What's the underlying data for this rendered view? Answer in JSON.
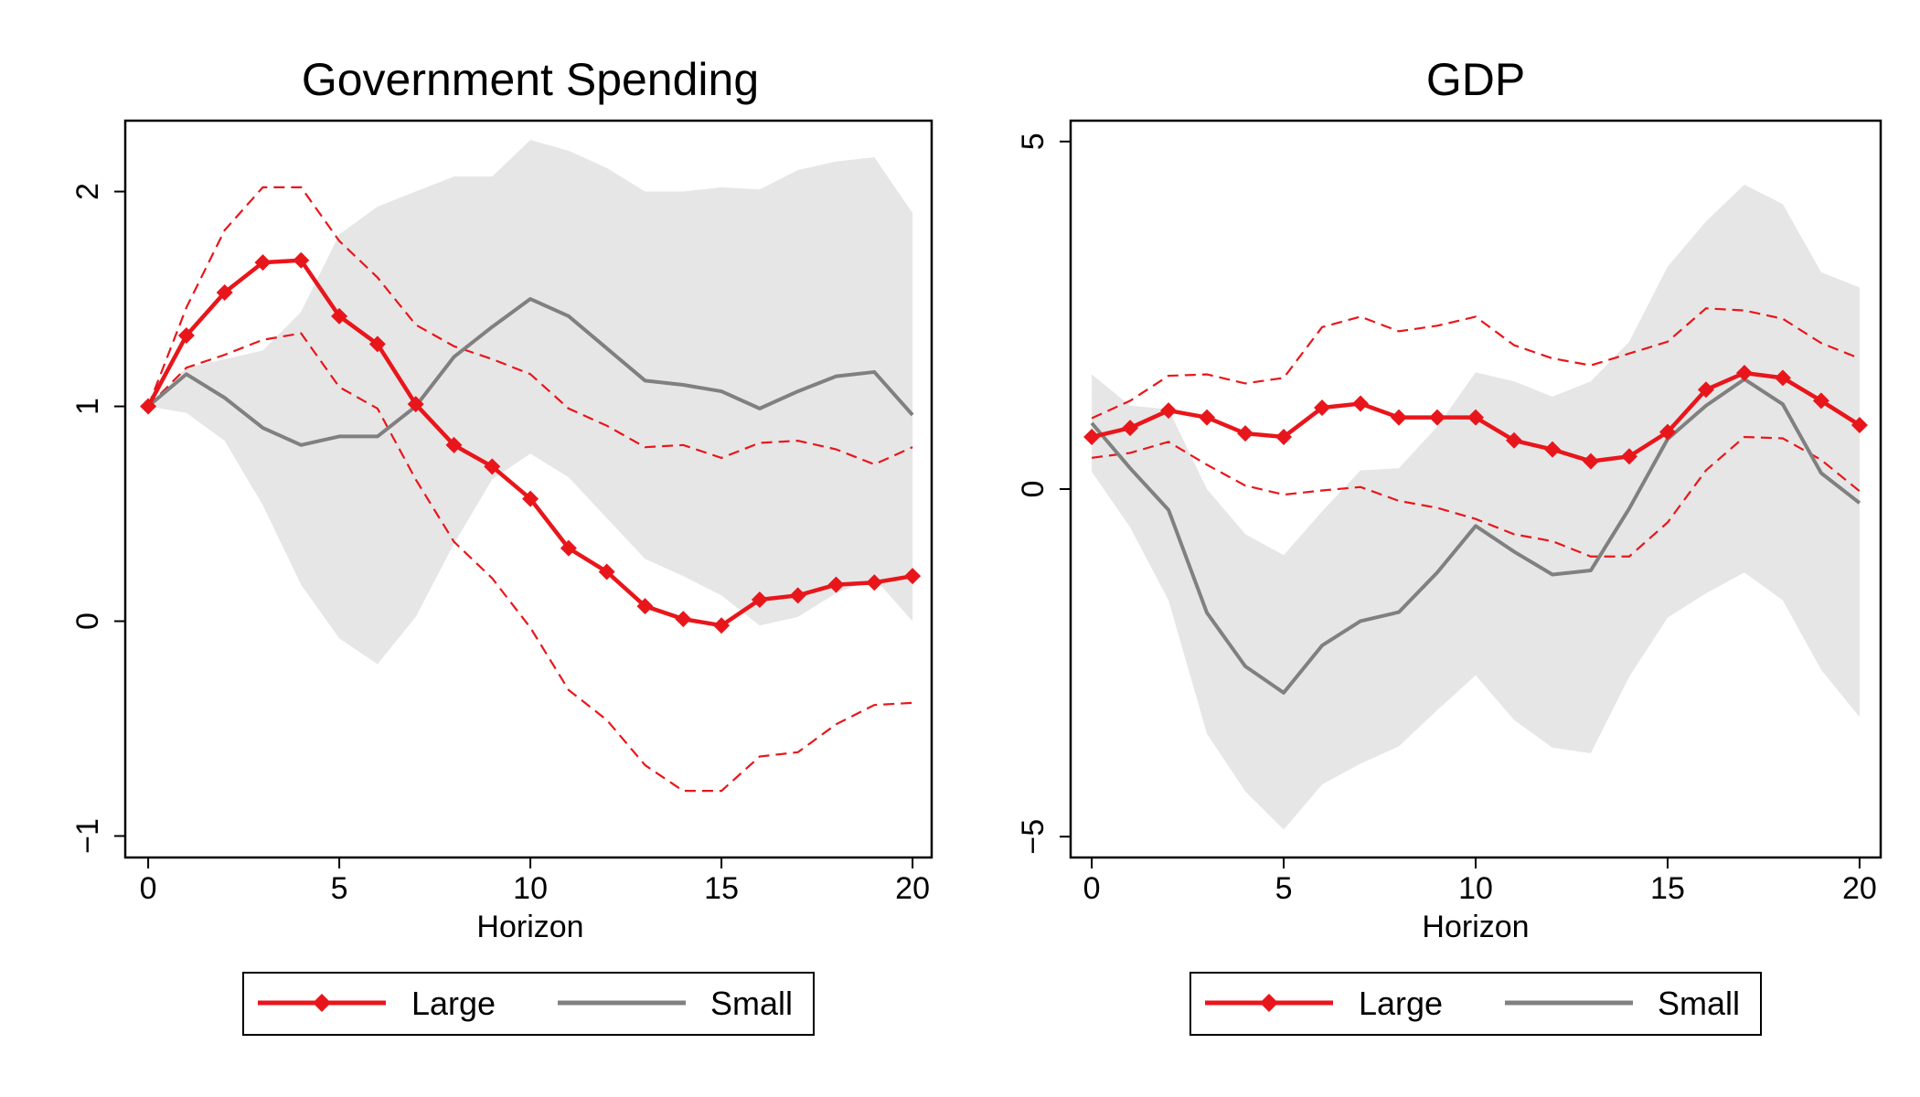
{
  "chart_data": [
    {
      "type": "line",
      "title": "Government Spending",
      "xlabel": "Horizon",
      "ylabel": "",
      "xlim": [
        -0.6,
        20.5
      ],
      "ylim": [
        -1.1,
        2.33
      ],
      "xticks": [
        0,
        5,
        10,
        15,
        20
      ],
      "xtick_labels": [
        "0",
        "5",
        "10",
        "15",
        "20"
      ],
      "yticks": [
        -1,
        0,
        1,
        2
      ],
      "ytick_labels": [
        "−1",
        "0",
        "1",
        "2"
      ],
      "x": [
        0,
        1,
        2,
        3,
        4,
        5,
        6,
        7,
        8,
        9,
        10,
        11,
        12,
        13,
        14,
        15,
        16,
        17,
        18,
        19,
        20
      ],
      "series": [
        {
          "name": "Large",
          "color": "#e8161b",
          "marker": "diamond",
          "values": [
            1.0,
            1.33,
            1.53,
            1.67,
            1.68,
            1.42,
            1.29,
            1.01,
            0.82,
            0.72,
            0.57,
            0.34,
            0.23,
            0.07,
            0.01,
            -0.02,
            0.1,
            0.12,
            0.17,
            0.18,
            0.21
          ],
          "lower": [
            1.0,
            1.18,
            1.24,
            1.31,
            1.34,
            1.09,
            0.99,
            0.66,
            0.37,
            0.2,
            -0.03,
            -0.32,
            -0.46,
            -0.67,
            -0.79,
            -0.79,
            -0.63,
            -0.61,
            -0.48,
            -0.39,
            -0.38
          ],
          "upper": [
            1.0,
            1.46,
            1.82,
            2.02,
            2.02,
            1.77,
            1.6,
            1.38,
            1.28,
            1.22,
            1.15,
            0.99,
            0.91,
            0.81,
            0.82,
            0.76,
            0.83,
            0.84,
            0.8,
            0.73,
            0.81
          ]
        },
        {
          "name": "Small",
          "color": "#808080",
          "values": [
            1.0,
            1.15,
            1.04,
            0.9,
            0.82,
            0.86,
            0.86,
            1.0,
            1.23,
            1.37,
            1.5,
            1.42,
            1.27,
            1.12,
            1.1,
            1.07,
            0.99,
            1.07,
            1.14,
            1.16,
            0.96
          ],
          "lower": [
            1.0,
            0.97,
            0.84,
            0.54,
            0.17,
            -0.08,
            -0.2,
            0.02,
            0.36,
            0.66,
            0.78,
            0.67,
            0.48,
            0.29,
            0.21,
            0.12,
            -0.02,
            0.02,
            0.13,
            0.2,
            0.0
          ],
          "upper": [
            1.0,
            1.18,
            1.22,
            1.26,
            1.44,
            1.8,
            1.93,
            2.0,
            2.07,
            2.07,
            2.24,
            2.19,
            2.11,
            2.0,
            2.0,
            2.02,
            2.01,
            2.1,
            2.14,
            2.16,
            1.9
          ]
        }
      ],
      "legend": {
        "position": "bottom",
        "entries": [
          "Large",
          "Small"
        ]
      }
    },
    {
      "type": "line",
      "title": "GDP",
      "xlabel": "Horizon",
      "ylabel": "",
      "xlim": [
        -0.55,
        20.55
      ],
      "ylim": [
        -5.3,
        5.3
      ],
      "xticks": [
        0,
        5,
        10,
        15,
        20
      ],
      "xtick_labels": [
        "0",
        "5",
        "10",
        "15",
        "20"
      ],
      "yticks": [
        -5,
        0,
        5
      ],
      "ytick_labels": [
        "−5",
        "0",
        "5"
      ],
      "x": [
        0,
        1,
        2,
        3,
        4,
        5,
        6,
        7,
        8,
        9,
        10,
        11,
        12,
        13,
        14,
        15,
        16,
        17,
        18,
        19,
        20
      ],
      "series": [
        {
          "name": "Large",
          "color": "#e8161b",
          "marker": "diamond",
          "values": [
            0.75,
            0.88,
            1.13,
            1.03,
            0.8,
            0.75,
            1.17,
            1.23,
            1.03,
            1.03,
            1.03,
            0.7,
            0.57,
            0.4,
            0.47,
            0.82,
            1.43,
            1.67,
            1.6,
            1.27,
            0.92
          ],
          "lower": [
            0.45,
            0.52,
            0.68,
            0.35,
            0.05,
            -0.08,
            -0.02,
            0.03,
            -0.17,
            -0.27,
            -0.43,
            -0.65,
            -0.75,
            -0.97,
            -0.97,
            -0.48,
            0.27,
            0.75,
            0.73,
            0.42,
            -0.03
          ],
          "upper": [
            1.02,
            1.27,
            1.63,
            1.65,
            1.52,
            1.6,
            2.33,
            2.48,
            2.27,
            2.35,
            2.48,
            2.07,
            1.88,
            1.78,
            1.95,
            2.12,
            2.6,
            2.57,
            2.45,
            2.1,
            1.88
          ]
        },
        {
          "name": "Small",
          "color": "#808080",
          "values": [
            0.95,
            0.3,
            -0.3,
            -1.78,
            -2.55,
            -2.93,
            -2.25,
            -1.9,
            -1.77,
            -1.2,
            -0.53,
            -0.9,
            -1.23,
            -1.17,
            -0.28,
            0.72,
            1.2,
            1.58,
            1.22,
            0.23,
            -0.2
          ],
          "lower": [
            0.25,
            -0.55,
            -1.6,
            -3.52,
            -4.35,
            -4.9,
            -4.25,
            -3.95,
            -3.7,
            -3.18,
            -2.68,
            -3.32,
            -3.72,
            -3.8,
            -2.7,
            -1.85,
            -1.5,
            -1.2,
            -1.6,
            -2.6,
            -3.28
          ],
          "upper": [
            1.65,
            1.2,
            1.15,
            0.0,
            -0.65,
            -0.95,
            -0.32,
            0.27,
            0.3,
            0.9,
            1.68,
            1.55,
            1.33,
            1.55,
            2.12,
            3.2,
            3.85,
            4.38,
            4.1,
            3.12,
            2.9
          ]
        }
      ],
      "legend": {
        "position": "bottom",
        "entries": [
          "Large",
          "Small"
        ]
      }
    }
  ]
}
